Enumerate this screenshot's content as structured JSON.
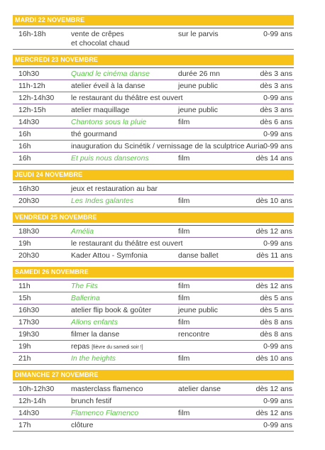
{
  "days": [
    {
      "header": "MARDI 22 NOVEMBRE",
      "rows": [
        {
          "time": "16h-18h",
          "title": "vente de crêpes",
          "title2": "et chocolat chaud",
          "category": "sur le parvis",
          "age": "0-99 ans",
          "green": false
        }
      ]
    },
    {
      "header": "MERCREDI 23 NOVEMBRE",
      "rows": [
        {
          "time": "10h30",
          "title": "Quand le cinéma danse",
          "category": "durée 26 mn",
          "age": "dès 3 ans",
          "green": true
        },
        {
          "time": "11h-12h",
          "title": "atelier éveil à la danse",
          "category": "jeune public",
          "age": "dès 3 ans",
          "green": false
        },
        {
          "time": "12h-14h30",
          "title": "le restaurant du théâtre est ouvert",
          "category": "",
          "age": "0-99 ans",
          "green": false
        },
        {
          "time": "12h-15h",
          "title": "atelier maquillage",
          "category": "jeune public",
          "age": "dès 3 ans",
          "green": false
        },
        {
          "time": "14h30",
          "title": "Chantons sous la pluie",
          "category": "film",
          "age": "dès 6 ans",
          "green": true
        },
        {
          "time": "16h",
          "title": "thé gourmand",
          "category": "",
          "age": "0-99 ans",
          "green": false
        },
        {
          "time": "16h",
          "title": "inauguration du Scinétik / vernissage de la sculptrice Auria",
          "category": "",
          "age": "0-99 ans",
          "green": false
        },
        {
          "time": "16h",
          "title": "Et puis nous danserons",
          "category": "film",
          "age": "dès 14 ans",
          "green": true
        }
      ]
    },
    {
      "header": "JEUDI 24 NOVEMBRE",
      "rows": [
        {
          "time": "16h30",
          "title": "jeux et restauration au bar",
          "category": "",
          "age": "",
          "green": false
        },
        {
          "time": "20h30",
          "title": "Les Indes galantes",
          "category": "film",
          "age": "dès 10 ans",
          "green": true
        }
      ]
    },
    {
      "header": "VENDREDI 25 NOVEMBRE",
      "rows": [
        {
          "time": "18h30",
          "title": "Amélia",
          "category": "film",
          "age": "dès 12 ans",
          "green": true
        },
        {
          "time": "19h",
          "title": "le restaurant du théâtre est ouvert",
          "category": "",
          "age": "0-99 ans",
          "green": false
        },
        {
          "time": "20h30",
          "title": "Kader Attou - Symfonia",
          "category": "danse ballet",
          "age": "dès 11 ans",
          "green": false
        }
      ]
    },
    {
      "header": "SAMEDI 26 NOVEMBRE",
      "rows": [
        {
          "time": "11h",
          "title": "The Fits",
          "category": "film",
          "age": "dès 12 ans",
          "green": true
        },
        {
          "time": "15h",
          "title": "Ballerina",
          "category": "film",
          "age": "dès 5 ans",
          "green": true
        },
        {
          "time": "16h30",
          "title": "atelier flip book & goûter",
          "category": "jeune public",
          "age": "dès 5 ans",
          "green": false
        },
        {
          "time": "17h30",
          "title": "Allons enfants",
          "category": "film",
          "age": "dès 8 ans",
          "green": true
        },
        {
          "time": "19h30",
          "title": "filmer la danse",
          "category": "rencontre",
          "age": "dès 8 ans",
          "green": false
        },
        {
          "time": "19h",
          "title": "repas",
          "note": "[fièvre du samedi soir !]",
          "category": "",
          "age": "0-99 ans",
          "green": false
        },
        {
          "time": "21h",
          "title": "In the heights",
          "category": "film",
          "age": "dès 10 ans",
          "green": true
        }
      ]
    },
    {
      "header": "DIMANCHE 27 NOVEMBRE",
      "rows": [
        {
          "time": "10h-12h30",
          "title": "masterclass flamenco",
          "category": "atelier danse",
          "age": "dès 12 ans",
          "green": false
        },
        {
          "time": "12h-14h",
          "title": "brunch festif",
          "category": "",
          "age": "0-99 ans",
          "green": false
        },
        {
          "time": "14h30",
          "title": "Flamenco Flamenco",
          "category": "film",
          "age": "dès 12 ans",
          "green": true
        },
        {
          "time": "17h",
          "title": "clôture",
          "category": "",
          "age": "0-99 ans",
          "green": false
        }
      ]
    }
  ],
  "colors": {
    "header_bg": "#f7c31b",
    "header_text": "#ffffff",
    "rule": "#6b3b8f",
    "film_title": "#5cc24a",
    "text": "#3a3a3a"
  }
}
